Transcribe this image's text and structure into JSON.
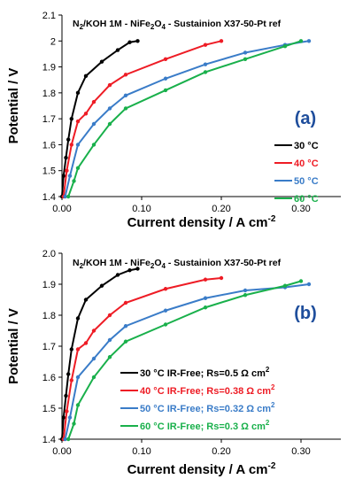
{
  "figure": {
    "colors": {
      "30": "#000000",
      "40": "#ee1c25",
      "50": "#3a7cc8",
      "60": "#19b04b",
      "panel_label": "#1f4e9c"
    }
  },
  "chart_data": [
    {
      "type": "line",
      "panel_label": "(a)",
      "title_parts": [
        "N",
        "2",
        "/KOH 1M - NiFe",
        "2",
        "O",
        "4",
        " - Sustainion X37-50-Pt ref"
      ],
      "xlabel": "Current density  / A cm",
      "xlabel_sup": "-2",
      "ylabel": "Potential / V",
      "xlim": [
        0,
        0.35
      ],
      "ylim": [
        1.4,
        2.1
      ],
      "x_ticks": [
        0,
        0.1,
        0.2,
        0.3
      ],
      "x_tick_labels": [
        "0.00",
        "0.10",
        "0.20",
        "0.30"
      ],
      "y_ticks": [
        1.4,
        1.5,
        1.6,
        1.7,
        1.8,
        1.9,
        2.0,
        2.1
      ],
      "y_tick_labels": [
        "1.4",
        "1.5",
        "1.6",
        "1.7",
        "1.8",
        "1.9",
        "2",
        "2.1"
      ],
      "legend_position": "right",
      "series": [
        {
          "name": "30 °C",
          "color": "#000000",
          "x": [
            0.0,
            0.002,
            0.005,
            0.008,
            0.012,
            0.02,
            0.03,
            0.05,
            0.07,
            0.085,
            0.095
          ],
          "y": [
            1.4,
            1.48,
            1.55,
            1.62,
            1.7,
            1.8,
            1.865,
            1.92,
            1.965,
            1.995,
            2.0
          ]
        },
        {
          "name": "40 °C",
          "color": "#ee1c25",
          "x": [
            0.002,
            0.006,
            0.012,
            0.02,
            0.03,
            0.04,
            0.06,
            0.08,
            0.13,
            0.18,
            0.2
          ],
          "y": [
            1.4,
            1.5,
            1.6,
            1.69,
            1.72,
            1.765,
            1.83,
            1.87,
            1.93,
            1.985,
            2.0
          ]
        },
        {
          "name": "50 °C",
          "color": "#3a7cc8",
          "x": [
            0.004,
            0.01,
            0.02,
            0.04,
            0.06,
            0.08,
            0.13,
            0.18,
            0.23,
            0.28,
            0.31
          ],
          "y": [
            1.4,
            1.48,
            1.6,
            1.68,
            1.74,
            1.79,
            1.855,
            1.91,
            1.955,
            1.985,
            2.0
          ]
        },
        {
          "name": "60 °C",
          "color": "#19b04b",
          "x": [
            0.008,
            0.015,
            0.02,
            0.04,
            0.06,
            0.08,
            0.13,
            0.18,
            0.23,
            0.28,
            0.3
          ],
          "y": [
            1.4,
            1.46,
            1.51,
            1.6,
            1.68,
            1.74,
            1.81,
            1.88,
            1.93,
            1.98,
            2.0
          ]
        }
      ]
    },
    {
      "type": "line",
      "panel_label": "(b)",
      "title_parts": [
        "N",
        "2",
        "/KOH 1M - NiFe",
        "2",
        "O",
        "4",
        " - Sustainion X37-50-Pt ref"
      ],
      "xlabel": "Current density  / A cm",
      "xlabel_sup": "-2",
      "ylabel": "Potential / V",
      "xlim": [
        0,
        0.35
      ],
      "ylim": [
        1.4,
        2.0
      ],
      "x_ticks": [
        0,
        0.1,
        0.2,
        0.3
      ],
      "x_tick_labels": [
        "0.00",
        "0.10",
        "0.20",
        "0.30"
      ],
      "y_ticks": [
        1.4,
        1.5,
        1.6,
        1.7,
        1.8,
        1.9,
        2.0
      ],
      "y_tick_labels": [
        "1.4",
        "1.5",
        "1.6",
        "1.7",
        "1.8",
        "1.9",
        "2.0"
      ],
      "legend_position": "right",
      "series": [
        {
          "name": "30 °C IR-Free; Rs=0.5 Ω cm",
          "sup": "2",
          "color": "#000000",
          "x": [
            0.0,
            0.002,
            0.005,
            0.008,
            0.012,
            0.02,
            0.03,
            0.05,
            0.07,
            0.085,
            0.095
          ],
          "y": [
            1.4,
            1.47,
            1.54,
            1.61,
            1.69,
            1.79,
            1.85,
            1.895,
            1.93,
            1.945,
            1.95
          ]
        },
        {
          "name": "40 °C IR-Free; Rs=0.38 Ω cm",
          "sup": "2",
          "color": "#ee1c25",
          "x": [
            0.002,
            0.006,
            0.012,
            0.02,
            0.03,
            0.04,
            0.06,
            0.08,
            0.13,
            0.18,
            0.2
          ],
          "y": [
            1.4,
            1.49,
            1.59,
            1.69,
            1.71,
            1.75,
            1.8,
            1.84,
            1.885,
            1.915,
            1.92
          ]
        },
        {
          "name": "50 °C IR-Free; Rs=0.32 Ω cm",
          "sup": "2",
          "color": "#3a7cc8",
          "x": [
            0.004,
            0.01,
            0.02,
            0.04,
            0.06,
            0.08,
            0.13,
            0.18,
            0.23,
            0.28,
            0.31
          ],
          "y": [
            1.4,
            1.47,
            1.6,
            1.66,
            1.72,
            1.765,
            1.815,
            1.855,
            1.88,
            1.89,
            1.9
          ]
        },
        {
          "name": "60 °C IR-Free; Rs=0.3 Ω cm",
          "sup": "2",
          "color": "#19b04b",
          "x": [
            0.008,
            0.015,
            0.02,
            0.04,
            0.06,
            0.08,
            0.13,
            0.18,
            0.23,
            0.28,
            0.3
          ],
          "y": [
            1.4,
            1.45,
            1.51,
            1.6,
            1.665,
            1.715,
            1.77,
            1.825,
            1.865,
            1.895,
            1.91
          ]
        }
      ]
    }
  ]
}
